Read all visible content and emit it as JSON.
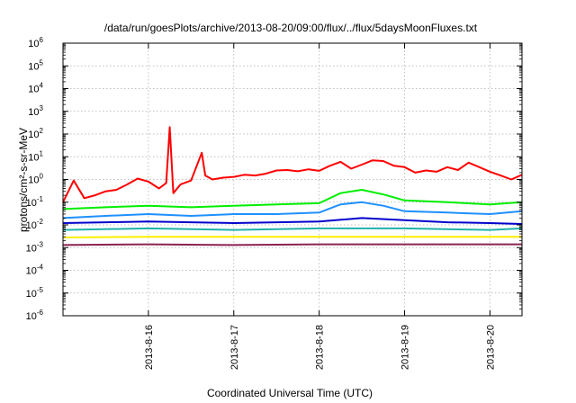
{
  "chart_data": {
    "type": "line",
    "title": "/data/run/goesPlots/archive/2013-08-20/09:00/flux/../flux/5daysMoonFluxes.txt",
    "xlabel": "Coordinated Universal Time (UTC)",
    "ylabel": "protons/cm²-s-sr-MeV",
    "yscale": "log",
    "ylim_exp": [
      -6,
      6
    ],
    "y_ticks": [
      {
        "exp": -6,
        "base": "10",
        "sup": "-6"
      },
      {
        "exp": -5,
        "base": "10",
        "sup": "-5"
      },
      {
        "exp": -4,
        "base": "10",
        "sup": "-4"
      },
      {
        "exp": -3,
        "base": "10",
        "sup": "-3"
      },
      {
        "exp": -2,
        "base": "10",
        "sup": "-2"
      },
      {
        "exp": -1,
        "base": "10",
        "sup": "-1"
      },
      {
        "exp": 0,
        "base": "10",
        "sup": "0"
      },
      {
        "exp": 1,
        "base": "10",
        "sup": "1"
      },
      {
        "exp": 2,
        "base": "10",
        "sup": "2"
      },
      {
        "exp": 3,
        "base": "10",
        "sup": "3"
      },
      {
        "exp": 4,
        "base": "10",
        "sup": "4"
      },
      {
        "exp": 5,
        "base": "10",
        "sup": "5"
      },
      {
        "exp": 6,
        "base": "10",
        "sup": "6"
      }
    ],
    "x_range": [
      "2013-08-15T00:00",
      "2013-08-20T09:00"
    ],
    "x_ticks": [
      "2013-8-16",
      "2013-8-17",
      "2013-8-18",
      "2013-8-19",
      "2013-8-20"
    ],
    "grid": true,
    "series": [
      {
        "color": "#ff0000",
        "x": [
          "2013-08-15T00:00",
          "2013-08-15T03:00",
          "2013-08-15T06:00",
          "2013-08-15T09:00",
          "2013-08-15T12:00",
          "2013-08-15T15:00",
          "2013-08-15T18:00",
          "2013-08-15T21:00",
          "2013-08-16T00:00",
          "2013-08-16T03:00",
          "2013-08-16T05:00",
          "2013-08-16T06:00",
          "2013-08-16T07:00",
          "2013-08-16T09:00",
          "2013-08-16T12:00",
          "2013-08-16T15:00",
          "2013-08-16T16:00",
          "2013-08-16T18:00",
          "2013-08-16T21:00",
          "2013-08-17T00:00",
          "2013-08-17T03:00",
          "2013-08-17T06:00",
          "2013-08-17T09:00",
          "2013-08-17T12:00",
          "2013-08-17T15:00",
          "2013-08-17T18:00",
          "2013-08-17T21:00",
          "2013-08-18T00:00",
          "2013-08-18T03:00",
          "2013-08-18T06:00",
          "2013-08-18T09:00",
          "2013-08-18T12:00",
          "2013-08-18T15:00",
          "2013-08-18T18:00",
          "2013-08-18T21:00",
          "2013-08-19T00:00",
          "2013-08-19T03:00",
          "2013-08-19T06:00",
          "2013-08-19T09:00",
          "2013-08-19T12:00",
          "2013-08-19T15:00",
          "2013-08-19T18:00",
          "2013-08-19T21:00",
          "2013-08-20T00:00",
          "2013-08-20T03:00",
          "2013-08-20T06:00",
          "2013-08-20T09:00"
        ],
        "y": [
          0.1,
          0.9,
          0.15,
          0.2,
          0.3,
          0.35,
          0.6,
          1.1,
          0.8,
          0.4,
          0.7,
          200,
          0.25,
          0.6,
          0.9,
          15,
          1.5,
          1.0,
          1.2,
          1.3,
          1.6,
          1.5,
          1.8,
          2.5,
          2.6,
          2.3,
          2.8,
          2.4,
          4.0,
          6.0,
          3.0,
          4.5,
          7.0,
          6.5,
          4.0,
          3.5,
          2.0,
          2.5,
          2.2,
          3.5,
          2.6,
          5.5,
          3.5,
          2.2,
          1.5,
          1.0,
          1.6
        ]
      },
      {
        "color": "#00ee00",
        "x": [
          "2013-08-15T00:00",
          "2013-08-15T12:00",
          "2013-08-16T00:00",
          "2013-08-16T12:00",
          "2013-08-17T00:00",
          "2013-08-17T12:00",
          "2013-08-18T00:00",
          "2013-08-18T06:00",
          "2013-08-18T12:00",
          "2013-08-18T18:00",
          "2013-08-19T00:00",
          "2013-08-19T12:00",
          "2013-08-20T00:00",
          "2013-08-20T09:00"
        ],
        "y": [
          0.05,
          0.06,
          0.07,
          0.06,
          0.07,
          0.08,
          0.09,
          0.25,
          0.35,
          0.22,
          0.12,
          0.1,
          0.08,
          0.1
        ]
      },
      {
        "color": "#1e90ff",
        "x": [
          "2013-08-15T00:00",
          "2013-08-15T12:00",
          "2013-08-16T00:00",
          "2013-08-16T12:00",
          "2013-08-17T00:00",
          "2013-08-17T12:00",
          "2013-08-18T00:00",
          "2013-08-18T06:00",
          "2013-08-18T12:00",
          "2013-08-18T18:00",
          "2013-08-19T00:00",
          "2013-08-19T12:00",
          "2013-08-20T00:00",
          "2013-08-20T09:00"
        ],
        "y": [
          0.02,
          0.025,
          0.03,
          0.025,
          0.03,
          0.03,
          0.035,
          0.08,
          0.1,
          0.07,
          0.04,
          0.035,
          0.03,
          0.04
        ]
      },
      {
        "color": "#0000cd",
        "x": [
          "2013-08-15T00:00",
          "2013-08-15T12:00",
          "2013-08-16T00:00",
          "2013-08-16T12:00",
          "2013-08-17T00:00",
          "2013-08-17T12:00",
          "2013-08-18T00:00",
          "2013-08-18T12:00",
          "2013-08-19T00:00",
          "2013-08-19T12:00",
          "2013-08-20T00:00",
          "2013-08-20T09:00"
        ],
        "y": [
          0.012,
          0.013,
          0.014,
          0.013,
          0.012,
          0.013,
          0.014,
          0.02,
          0.016,
          0.013,
          0.012,
          0.011
        ]
      },
      {
        "color": "#20b2aa",
        "x": [
          "2013-08-15T00:00",
          "2013-08-16T00:00",
          "2013-08-17T00:00",
          "2013-08-18T00:00",
          "2013-08-19T00:00",
          "2013-08-20T00:00",
          "2013-08-20T09:00"
        ],
        "y": [
          0.006,
          0.007,
          0.006,
          0.007,
          0.007,
          0.006,
          0.007
        ]
      },
      {
        "color": "#ffee00",
        "x": [
          "2013-08-15T00:00",
          "2013-08-16T00:00",
          "2013-08-17T00:00",
          "2013-08-18T00:00",
          "2013-08-19T00:00",
          "2013-08-20T00:00",
          "2013-08-20T09:00"
        ],
        "y": [
          0.0028,
          0.003,
          0.003,
          0.003,
          0.003,
          0.003,
          0.003
        ]
      },
      {
        "color": "#8b2252",
        "x": [
          "2013-08-15T00:00",
          "2013-08-16T00:00",
          "2013-08-17T00:00",
          "2013-08-18T00:00",
          "2013-08-19T00:00",
          "2013-08-20T00:00",
          "2013-08-20T09:00"
        ],
        "y": [
          0.0013,
          0.0014,
          0.0013,
          0.0014,
          0.0014,
          0.0014,
          0.0014
        ]
      }
    ]
  }
}
